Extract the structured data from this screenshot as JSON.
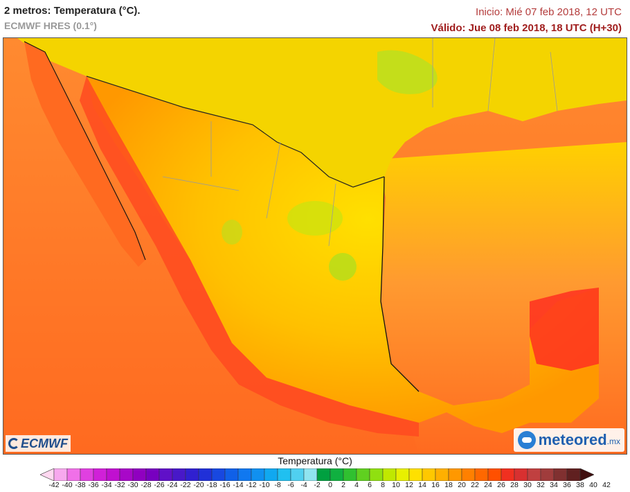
{
  "header": {
    "title": "2 metros: Temperatura (°C).",
    "model": "ECMWF HRES (0.1°)",
    "run_time": "Inicio: Mié 07 feb 2018, 12 UTC",
    "valid_time": "Válido: Jue 08 feb 2018, 18 UTC (H+30)"
  },
  "map": {
    "region": "México",
    "variable": "Temperatura a 2 metros"
  },
  "logos": {
    "left": "ECMWF",
    "right_name": "meteored",
    "right_tld": ".mx"
  },
  "legend": {
    "title": "Temperatura (°C)",
    "ticks": [
      "-42",
      "-40",
      "-38",
      "-36",
      "-34",
      "-32",
      "-30",
      "-28",
      "-26",
      "-24",
      "-22",
      "-20",
      "-18",
      "-16",
      "-14",
      "-12",
      "-10",
      "-8",
      "-6",
      "-4",
      "-2",
      "0",
      "2",
      "4",
      "6",
      "8",
      "10",
      "12",
      "14",
      "16",
      "18",
      "20",
      "22",
      "24",
      "26",
      "28",
      "30",
      "32",
      "34",
      "36",
      "38",
      "40",
      "42"
    ],
    "colors": [
      "#ffd8f0",
      "#f7a8ee",
      "#f070e8",
      "#e040e0",
      "#d020d8",
      "#c010d0",
      "#a808c8",
      "#9000c0",
      "#7800c0",
      "#6010c8",
      "#4818c8",
      "#3020d0",
      "#2030d8",
      "#1848e0",
      "#1060e8",
      "#1078f0",
      "#1090f0",
      "#10a8f0",
      "#20c0f0",
      "#50d0f0",
      "#90e4f0",
      "#00a040",
      "#10b040",
      "#30c030",
      "#60d020",
      "#90e010",
      "#c0e800",
      "#e8f000",
      "#ffe000",
      "#ffc800",
      "#ffb000",
      "#ff9800",
      "#ff8000",
      "#ff6800",
      "#ff5000",
      "#f03020",
      "#d83030",
      "#c04040",
      "#a03c3c",
      "#803030",
      "#602020",
      "#401010"
    ]
  }
}
